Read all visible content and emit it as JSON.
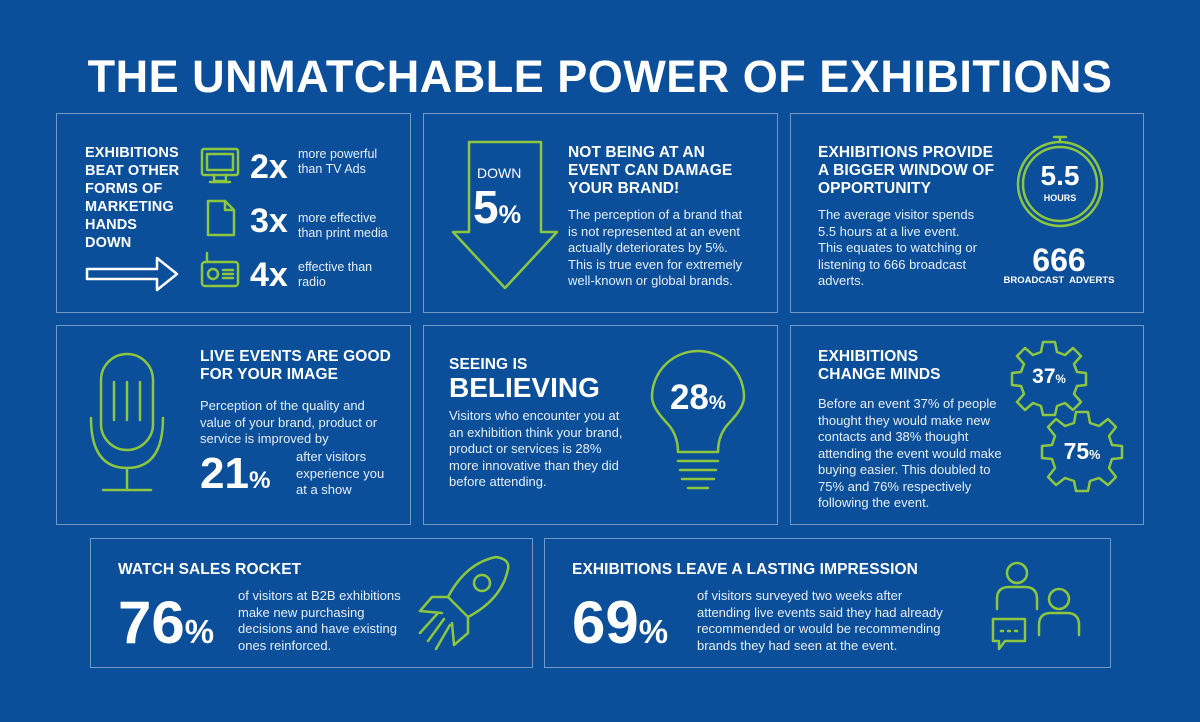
{
  "title": "THE UNMATCHABLE POWER OF EXHIBITIONS",
  "p1": {
    "heading_lines": [
      "EXHIBITIONS",
      "BEAT OTHER",
      "FORMS OF",
      "MARKETING",
      "HANDS",
      "DOWN"
    ],
    "stats": [
      {
        "mult": "2x",
        "desc1": "more powerful",
        "desc2": "than TV Ads",
        "icon": "tv-icon"
      },
      {
        "mult": "3x",
        "desc1": "more effective",
        "desc2": "than print media",
        "icon": "document-icon"
      },
      {
        "mult": "4x",
        "desc1": "effective than",
        "desc2": "radio",
        "icon": "radio-icon"
      }
    ]
  },
  "p2": {
    "down_label": "DOWN",
    "down_value": "5",
    "percent": "%",
    "heading_lines": [
      "NOT BEING AT AN",
      "EVENT CAN DAMAGE",
      "YOUR BRAND!"
    ],
    "body_lines": [
      "The perception of a brand that",
      "is not represented at an event",
      "actually deteriorates by 5%.",
      "This is true even for extremely",
      "well-known or global brands."
    ]
  },
  "p3": {
    "heading_lines": [
      "EXHIBITIONS PROVIDE",
      "A BIGGER WINDOW OF",
      "OPPORTUNITY"
    ],
    "body_lines": [
      "The average visitor spends",
      "5.5 hours at a live event.",
      "This equates to watching or",
      "listening to 666 broadcast",
      "adverts."
    ],
    "hours_value": "5.5",
    "hours_label": "HOURS",
    "adverts_value": "666",
    "adverts_label": "BROADCAST  ADVERTS"
  },
  "p4": {
    "heading_lines": [
      "LIVE EVENTS ARE GOOD",
      "FOR YOUR IMAGE"
    ],
    "body_lines": [
      "Perception of the quality and",
      "value of your brand, product or",
      "service is improved by"
    ],
    "stat": "21",
    "percent": "%",
    "stat_desc": [
      "after visitors",
      "experience you",
      "at a show"
    ]
  },
  "p5": {
    "heading_small": "SEEING IS",
    "heading_big": "BELIEVING",
    "body_lines": [
      "Visitors who encounter you at",
      "an exhibition think your brand,",
      "product or services is 28%",
      "more innovative than they did",
      "before attending."
    ],
    "stat": "28",
    "percent": "%"
  },
  "p6": {
    "heading_lines": [
      "EXHIBITIONS",
      "CHANGE MINDS"
    ],
    "body_lines": [
      "Before an event 37% of people",
      "thought they would make new",
      "contacts and 38% thought",
      "attending the event would make",
      "buying easier. This doubled to",
      "75% and 76% respectively",
      "following the event."
    ],
    "gear1": "37",
    "gear2": "75",
    "percent": "%"
  },
  "p7": {
    "heading": "WATCH SALES ROCKET",
    "stat": "76",
    "percent": "%",
    "body_lines": [
      "of visitors at B2B exhibitions",
      "make new purchasing",
      "decisions and have existing",
      "ones reinforced."
    ]
  },
  "p8": {
    "heading": "EXHIBITIONS LEAVE A LASTING IMPRESSION",
    "stat": "69",
    "percent": "%",
    "body_lines": [
      "of visitors surveyed two weeks after",
      "attending live events said they had already",
      "recommended or would be recommending",
      "brands they had seen at the event."
    ]
  },
  "colors": {
    "background": "#0b4f9a",
    "accent": "#8dc63f",
    "text": "#ffffff"
  }
}
